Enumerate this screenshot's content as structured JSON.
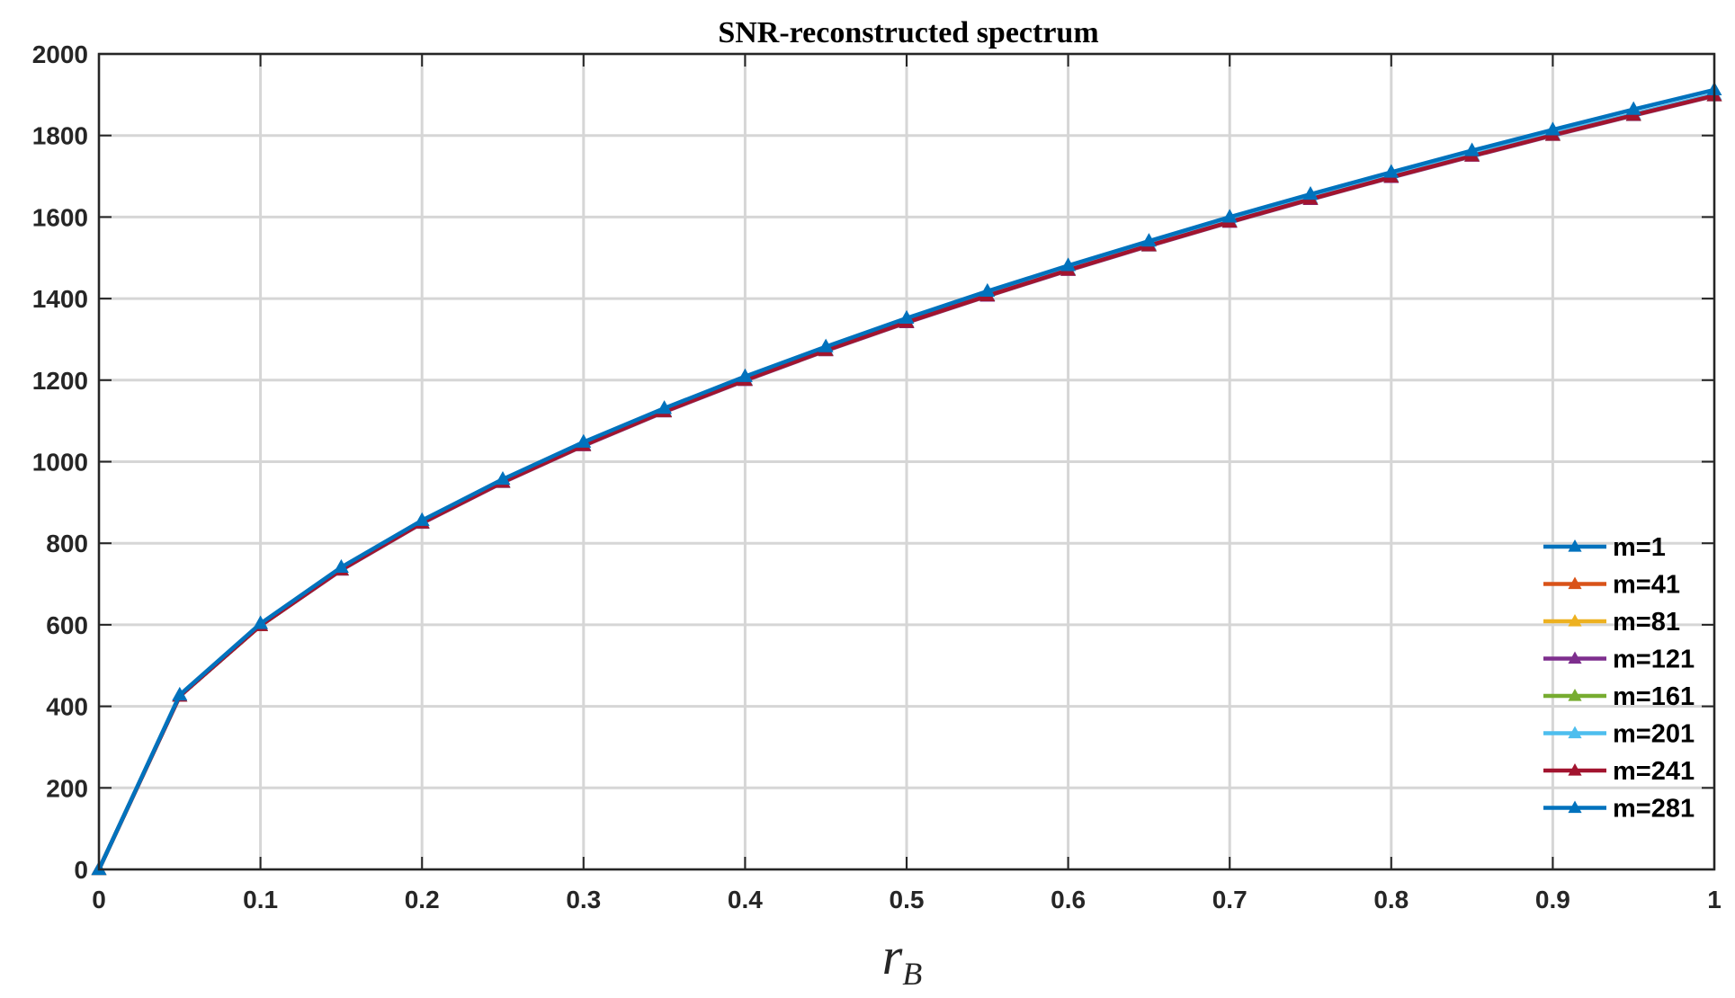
{
  "chart_data": {
    "type": "line",
    "title": "SNR-reconstructed spectrum",
    "xlabel": "r",
    "xlabel_subscript": "B",
    "ylabel": "",
    "xlim": [
      0,
      1
    ],
    "ylim": [
      0,
      2000
    ],
    "grid": true,
    "legend_position": "lower-right",
    "marker": "triangle",
    "x_ticks": [
      "0",
      "0.1",
      "0.2",
      "0.3",
      "0.4",
      "0.5",
      "0.6",
      "0.7",
      "0.8",
      "0.9",
      "1"
    ],
    "y_ticks": [
      "0",
      "200",
      "400",
      "600",
      "800",
      "1000",
      "1200",
      "1400",
      "1600",
      "1800",
      "2000"
    ],
    "x": [
      0,
      0.05,
      0.1,
      0.15,
      0.2,
      0.25,
      0.3,
      0.35,
      0.4,
      0.45,
      0.5,
      0.55,
      0.6,
      0.65,
      0.7,
      0.75,
      0.8,
      0.85,
      0.9,
      0.95,
      1.0
    ],
    "series": [
      {
        "name": "m=1",
        "color": "#0072BD",
        "values": [
          0,
          425,
          598,
          735,
          850,
          950,
          1040,
          1123,
          1200,
          1273,
          1342,
          1407,
          1470,
          1530,
          1588,
          1644,
          1698,
          1750,
          1801,
          1850,
          1898
        ]
      },
      {
        "name": "m=41",
        "color": "#D95319",
        "values": [
          0,
          425,
          598,
          735,
          850,
          950,
          1040,
          1123,
          1200,
          1273,
          1342,
          1407,
          1470,
          1530,
          1588,
          1644,
          1698,
          1750,
          1801,
          1850,
          1898
        ]
      },
      {
        "name": "m=81",
        "color": "#EDB120",
        "values": [
          0,
          425,
          598,
          735,
          850,
          950,
          1040,
          1123,
          1200,
          1273,
          1342,
          1407,
          1470,
          1530,
          1588,
          1644,
          1698,
          1750,
          1801,
          1850,
          1898
        ]
      },
      {
        "name": "m=121",
        "color": "#7E2F8E",
        "values": [
          0,
          425,
          598,
          734,
          849,
          949,
          1039,
          1122,
          1199,
          1272,
          1341,
          1406,
          1469,
          1529,
          1587,
          1643,
          1697,
          1749,
          1800,
          1849,
          1897
        ]
      },
      {
        "name": "m=161",
        "color": "#77AC30",
        "values": [
          0,
          425,
          598,
          735,
          850,
          950,
          1040,
          1123,
          1200,
          1273,
          1342,
          1407,
          1470,
          1530,
          1588,
          1644,
          1698,
          1750,
          1801,
          1850,
          1898
        ]
      },
      {
        "name": "m=201",
        "color": "#4DBEEE",
        "values": [
          0,
          425,
          599,
          736,
          851,
          951,
          1042,
          1125,
          1202,
          1275,
          1344,
          1409,
          1472,
          1533,
          1591,
          1647,
          1701,
          1753,
          1804,
          1853,
          1901
        ]
      },
      {
        "name": "m=241",
        "color": "#A2142F",
        "values": [
          0,
          425,
          598,
          735,
          850,
          950,
          1040,
          1123,
          1200,
          1273,
          1342,
          1407,
          1470,
          1530,
          1588,
          1644,
          1698,
          1750,
          1801,
          1850,
          1898
        ]
      },
      {
        "name": "m=281",
        "color": "#0072BD",
        "values": [
          0,
          428,
          603,
          741,
          856,
          957,
          1048,
          1131,
          1209,
          1282,
          1352,
          1418,
          1481,
          1541,
          1600,
          1656,
          1710,
          1763,
          1814,
          1864,
          1912
        ]
      }
    ]
  }
}
